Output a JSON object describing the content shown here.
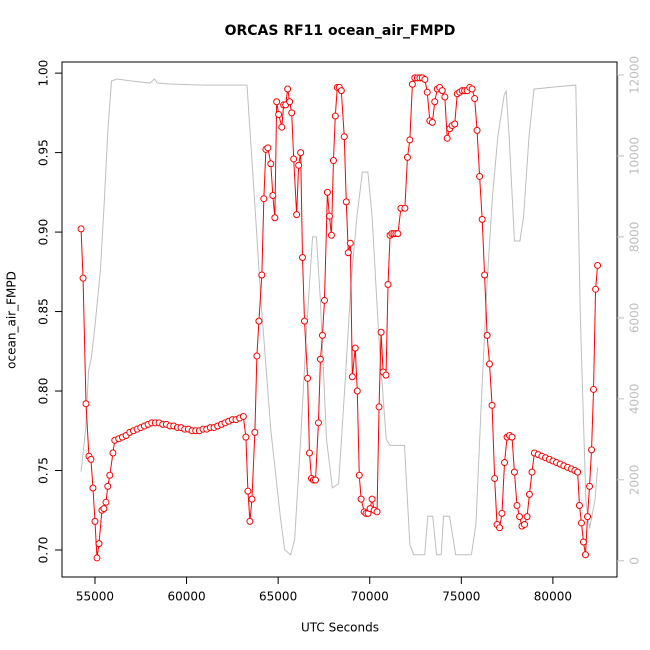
{
  "chart_data": {
    "type": "line",
    "title": "ORCAS RF11 ocean_air_FMPD",
    "x_label": "UTC Seconds",
    "y_label": "ocean_air_FMPD",
    "xlim": [
      53200,
      83500
    ],
    "ylim": [
      0.683,
      1.007
    ],
    "y2lim": [
      -400,
      12320
    ],
    "xticks": [
      55000,
      60000,
      65000,
      70000,
      75000,
      80000
    ],
    "yticks": [
      {
        "value": 0.7,
        "label": "0.70"
      },
      0.75,
      {
        "value": 0.8,
        "label": "0.80"
      },
      0.85,
      {
        "value": 0.9,
        "label": "0.90"
      },
      0.95,
      {
        "value": 1.0,
        "label": "1.00"
      }
    ],
    "y2ticks": [
      0,
      2000,
      4000,
      6000,
      8000,
      10000,
      12000
    ],
    "y2_color": "#bebebe",
    "series": [
      {
        "color": "#bebebe",
        "axis": "y2",
        "marker": "none",
        "x": [
          54240,
          54500,
          54650,
          54800,
          55000,
          55300,
          55500,
          55700,
          55900,
          56200,
          57000,
          58000,
          58250,
          58400,
          59000,
          60000,
          61000,
          62000,
          63000,
          63300,
          63700,
          64060,
          64600,
          65140,
          65360,
          65680,
          65900,
          66230,
          66550,
          66880,
          67090,
          67310,
          67640,
          67960,
          68300,
          68670,
          69000,
          69300,
          69600,
          69900,
          70130,
          70500,
          70900,
          71110,
          71900,
          72190,
          72400,
          73000,
          73170,
          73440,
          73650,
          73900,
          74030,
          74360,
          74690,
          75550,
          75800,
          76100,
          76400,
          76700,
          77000,
          77340,
          77450,
          77610,
          77900,
          78200,
          78400,
          78700,
          78970,
          80000,
          81250,
          81500,
          81800,
          82000,
          82300,
          82440
        ],
        "values": [
          2200,
          3300,
          4700,
          5000,
          5800,
          7200,
          8800,
          10600,
          11850,
          11900,
          11850,
          11800,
          11900,
          11800,
          11780,
          11760,
          11750,
          11750,
          11750,
          11750,
          9000,
          6440,
          3230,
          1010,
          270,
          150,
          520,
          3000,
          5700,
          8000,
          8000,
          6400,
          3000,
          1800,
          1900,
          4500,
          7000,
          8500,
          9600,
          9600,
          8500,
          5500,
          3000,
          2850,
          2850,
          400,
          150,
          150,
          1100,
          1100,
          150,
          150,
          1100,
          1100,
          150,
          150,
          900,
          4000,
          6800,
          9000,
          10500,
          11500,
          11600,
          10500,
          7900,
          7900,
          8500,
          10500,
          11650,
          11700,
          11750,
          6000,
          1500,
          800,
          1500,
          2300
        ]
      },
      {
        "color": "#ff0000",
        "marker": "circle",
        "x": [
          54240,
          54350,
          54510,
          54670,
          54780,
          54890,
          55000,
          55110,
          55220,
          55380,
          55490,
          55600,
          55700,
          55810,
          55980,
          56080,
          56300,
          56500,
          56700,
          56900,
          57100,
          57300,
          57500,
          57700,
          57900,
          58100,
          58300,
          58500,
          58700,
          58900,
          59100,
          59300,
          59500,
          59700,
          59900,
          60100,
          60300,
          60500,
          60700,
          60900,
          61100,
          61300,
          61500,
          61700,
          61900,
          62100,
          62300,
          62500,
          62700,
          62900,
          63100,
          63240,
          63350,
          63460,
          63570,
          63730,
          63840,
          63950,
          64110,
          64220,
          64330,
          64440,
          64600,
          64710,
          64820,
          64920,
          65030,
          65200,
          65300,
          65410,
          65520,
          65630,
          65740,
          65850,
          66010,
          66120,
          66230,
          66330,
          66440,
          66610,
          66710,
          66820,
          66930,
          67040,
          67200,
          67310,
          67420,
          67530,
          67690,
          67800,
          67910,
          68020,
          68120,
          68230,
          68340,
          68450,
          68610,
          68720,
          68830,
          68940,
          69050,
          69210,
          69320,
          69430,
          69530,
          69700,
          69800,
          69910,
          70020,
          70130,
          70240,
          70400,
          70510,
          70620,
          70730,
          70890,
          71000,
          71110,
          71210,
          71320,
          71430,
          71540,
          71700,
          71920,
          72060,
          72190,
          72330,
          72460,
          72600,
          72740,
          72870,
          73010,
          73140,
          73280,
          73420,
          73550,
          73690,
          73820,
          73960,
          74100,
          74230,
          74370,
          74500,
          74640,
          74780,
          74910,
          75050,
          75180,
          75320,
          75460,
          75590,
          75730,
          75860,
          76000,
          76140,
          76270,
          76410,
          76540,
          76680,
          76820,
          76950,
          77090,
          77220,
          77360,
          77500,
          77630,
          77770,
          77900,
          78040,
          78180,
          78310,
          78450,
          78590,
          78720,
          78860,
          78990,
          79200,
          79400,
          79600,
          79800,
          80000,
          80200,
          80400,
          80600,
          80800,
          81000,
          81200,
          81350,
          81450,
          81560,
          81670,
          81780,
          81890,
          82000,
          82110,
          82220,
          82330,
          82440
        ],
        "values": [
          0.902,
          0.871,
          0.792,
          0.759,
          0.757,
          0.739,
          0.718,
          0.695,
          0.704,
          0.725,
          0.726,
          0.73,
          0.74,
          0.747,
          0.761,
          0.769,
          0.77,
          0.771,
          0.772,
          0.774,
          0.775,
          0.776,
          0.777,
          0.778,
          0.779,
          0.78,
          0.78,
          0.78,
          0.779,
          0.779,
          0.778,
          0.778,
          0.777,
          0.777,
          0.776,
          0.776,
          0.775,
          0.775,
          0.775,
          0.776,
          0.776,
          0.777,
          0.777,
          0.778,
          0.779,
          0.78,
          0.781,
          0.782,
          0.782,
          0.783,
          0.784,
          0.771,
          0.737,
          0.718,
          0.732,
          0.774,
          0.822,
          0.844,
          0.873,
          0.921,
          0.952,
          0.953,
          0.943,
          0.923,
          0.909,
          0.982,
          0.974,
          0.966,
          0.98,
          0.98,
          0.99,
          0.982,
          0.975,
          0.946,
          0.911,
          0.942,
          0.95,
          0.884,
          0.844,
          0.808,
          0.761,
          0.745,
          0.744,
          0.744,
          0.78,
          0.82,
          0.835,
          0.857,
          0.925,
          0.91,
          0.898,
          0.945,
          0.973,
          0.991,
          0.991,
          0.989,
          0.96,
          0.919,
          0.887,
          0.893,
          0.809,
          0.827,
          0.8,
          0.747,
          0.732,
          0.724,
          0.723,
          0.723,
          0.726,
          0.732,
          0.725,
          0.724,
          0.79,
          0.837,
          0.812,
          0.81,
          0.867,
          0.898,
          0.899,
          0.899,
          0.899,
          0.899,
          0.915,
          0.915,
          0.947,
          0.958,
          0.993,
          0.997,
          0.997,
          0.997,
          0.997,
          0.996,
          0.988,
          0.97,
          0.969,
          0.982,
          0.99,
          0.991,
          0.989,
          0.985,
          0.959,
          0.965,
          0.967,
          0.968,
          0.987,
          0.988,
          0.989,
          0.989,
          0.989,
          0.991,
          0.99,
          0.984,
          0.964,
          0.935,
          0.908,
          0.873,
          0.835,
          0.817,
          0.791,
          0.745,
          0.716,
          0.714,
          0.723,
          0.755,
          0.771,
          0.772,
          0.771,
          0.749,
          0.728,
          0.721,
          0.715,
          0.716,
          0.721,
          0.735,
          0.749,
          0.761,
          0.76,
          0.759,
          0.758,
          0.757,
          0.756,
          0.755,
          0.754,
          0.753,
          0.752,
          0.751,
          0.75,
          0.749,
          0.728,
          0.717,
          0.705,
          0.697,
          0.721,
          0.74,
          0.763,
          0.801,
          0.864,
          0.879
        ]
      }
    ]
  }
}
